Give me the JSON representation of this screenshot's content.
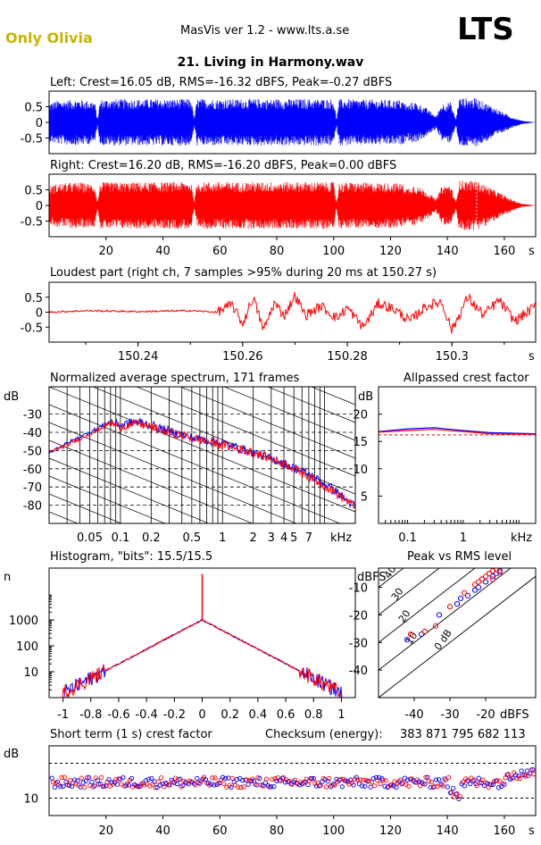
{
  "header": {
    "artist": "Only Olivia",
    "app_title": "MasVis ver 1.2 - www.lts.a.se",
    "logo": "LTS",
    "track_title": "21. Living in Harmony.wav",
    "artist_color": "#c8b400"
  },
  "colors": {
    "left": "#0000ff",
    "right": "#ff0000"
  },
  "chart_data": [
    {
      "id": "left",
      "type": "waveform",
      "title": "Left: Crest=16.05 dB, RMS=-16.32 dBFS, Peak=-0.27 dBFS",
      "ylim": [
        -1,
        1
      ],
      "y_ticks": [
        0.5,
        0,
        -0.5
      ],
      "y_tick_labels": [
        "0.5",
        "0",
        "-0.5"
      ],
      "xlim": [
        0,
        171
      ],
      "envelope": [
        [
          0,
          0.62
        ],
        [
          3,
          0.7
        ],
        [
          10,
          0.74
        ],
        [
          16,
          0.68
        ],
        [
          17,
          0.1
        ],
        [
          18,
          0.74
        ],
        [
          50,
          0.75
        ],
        [
          51,
          0.12
        ],
        [
          52,
          0.75
        ],
        [
          100,
          0.75
        ],
        [
          101,
          0.1
        ],
        [
          102,
          0.74
        ],
        [
          124,
          0.72
        ],
        [
          126,
          0.55
        ],
        [
          128,
          0.68
        ],
        [
          132,
          0.5
        ],
        [
          136,
          0.2
        ],
        [
          138,
          0.6
        ],
        [
          141,
          0.66
        ],
        [
          143,
          0.1
        ],
        [
          144,
          0.78
        ],
        [
          150,
          0.78
        ],
        [
          154,
          0.6
        ],
        [
          158,
          0.4
        ],
        [
          162,
          0.2
        ],
        [
          166,
          0.06
        ],
        [
          171,
          0.0
        ]
      ]
    },
    {
      "id": "right",
      "type": "waveform",
      "title": "Right: Crest=16.20 dB, RMS=-16.20 dBFS, Peak=0.00 dBFS",
      "ylim": [
        -1,
        1
      ],
      "y_ticks": [
        0.5,
        0,
        -0.5
      ],
      "y_tick_labels": [
        "0.5",
        "0",
        "-0.5"
      ],
      "xlim": [
        0,
        171
      ],
      "x_ticks": [
        20,
        40,
        60,
        80,
        100,
        120,
        140,
        160
      ],
      "x_tick_labels": [
        "20",
        "40",
        "60",
        "80",
        "100",
        "120",
        "140",
        "160"
      ],
      "x_unit": "s",
      "marker_x": 150.27,
      "envelope": [
        [
          0,
          0.62
        ],
        [
          3,
          0.7
        ],
        [
          10,
          0.74
        ],
        [
          16,
          0.68
        ],
        [
          17,
          0.1
        ],
        [
          18,
          0.74
        ],
        [
          50,
          0.75
        ],
        [
          51,
          0.12
        ],
        [
          52,
          0.75
        ],
        [
          100,
          0.75
        ],
        [
          101,
          0.1
        ],
        [
          102,
          0.74
        ],
        [
          124,
          0.72
        ],
        [
          126,
          0.55
        ],
        [
          128,
          0.68
        ],
        [
          132,
          0.5
        ],
        [
          136,
          0.2
        ],
        [
          138,
          0.62
        ],
        [
          141,
          0.68
        ],
        [
          143,
          0.1
        ],
        [
          144,
          0.8
        ],
        [
          150,
          0.8
        ],
        [
          154,
          0.62
        ],
        [
          158,
          0.42
        ],
        [
          162,
          0.22
        ],
        [
          166,
          0.06
        ],
        [
          171,
          0.0
        ]
      ]
    },
    {
      "id": "loudest",
      "type": "line",
      "title": "Loudest part (right ch, 7 samples >95% during 20 ms at 150.27 s)",
      "ylim": [
        -1,
        1
      ],
      "y_ticks": [
        0.5,
        0,
        -0.5
      ],
      "y_tick_labels": [
        "0.5",
        "0",
        "-0.5"
      ],
      "xlim": [
        150.223,
        150.316
      ],
      "x_ticks": [
        150.24,
        150.26,
        150.28,
        150.3
      ],
      "x_tick_labels": [
        "150.24",
        "150.26",
        "150.28",
        "150.3"
      ],
      "x_unit": "s",
      "trace": [
        [
          150.223,
          0.0
        ],
        [
          150.23,
          0.05
        ],
        [
          150.24,
          0.02
        ],
        [
          150.25,
          0.05
        ],
        [
          150.255,
          0.0
        ],
        [
          150.258,
          0.25
        ],
        [
          150.26,
          -0.4
        ],
        [
          150.262,
          0.5
        ],
        [
          150.264,
          -0.6
        ],
        [
          150.266,
          0.3
        ],
        [
          150.268,
          -0.1
        ],
        [
          150.27,
          0.55
        ],
        [
          150.272,
          -0.1
        ],
        [
          150.275,
          0.2
        ],
        [
          150.278,
          -0.2
        ],
        [
          150.28,
          0.15
        ],
        [
          150.283,
          -0.5
        ],
        [
          150.286,
          0.3
        ],
        [
          150.289,
          0.1
        ],
        [
          150.292,
          -0.3
        ],
        [
          150.295,
          0.2
        ],
        [
          150.298,
          0.35
        ],
        [
          150.3,
          -0.6
        ],
        [
          150.303,
          0.5
        ],
        [
          150.306,
          -0.1
        ],
        [
          150.309,
          0.4
        ],
        [
          150.312,
          -0.3
        ],
        [
          150.316,
          0.2
        ]
      ]
    },
    {
      "id": "spectrum",
      "type": "line",
      "title": "Normalized average spectrum, 171 frames",
      "y_unit": "dB",
      "ylim": [
        -90,
        -15
      ],
      "y_ticks": [
        -30,
        -40,
        -50,
        -60,
        -70,
        -80
      ],
      "y_tick_labels": [
        "-30",
        "-40",
        "-50",
        "-60",
        "-70",
        "-80"
      ],
      "x_scale": "log",
      "xlim": [
        0.02,
        20
      ],
      "x_ticks": [
        0.05,
        0.1,
        0.2,
        0.5,
        1,
        2,
        3,
        4,
        5,
        7
      ],
      "x_tick_labels": [
        "0.05",
        "0.1",
        "0.2",
        "0.5",
        "1",
        "2",
        "3",
        "4",
        "5",
        "7"
      ],
      "x_unit": "kHz",
      "series": [
        {
          "points": [
            [
              0.02,
              -51
            ],
            [
              0.03,
              -46
            ],
            [
              0.05,
              -40
            ],
            [
              0.08,
              -34
            ],
            [
              0.1,
              -36
            ],
            [
              0.15,
              -34
            ],
            [
              0.25,
              -38
            ],
            [
              0.5,
              -43
            ],
            [
              1,
              -46
            ],
            [
              2,
              -51
            ],
            [
              4,
              -57
            ],
            [
              7,
              -63
            ],
            [
              12,
              -71
            ],
            [
              20,
              -81
            ]
          ]
        },
        {
          "points": [
            [
              0.02,
              -51
            ],
            [
              0.03,
              -47
            ],
            [
              0.05,
              -41
            ],
            [
              0.08,
              -35
            ],
            [
              0.1,
              -37
            ],
            [
              0.15,
              -35
            ],
            [
              0.25,
              -39
            ],
            [
              0.5,
              -43
            ],
            [
              1,
              -47
            ],
            [
              2,
              -51
            ],
            [
              4,
              -57
            ],
            [
              7,
              -64
            ],
            [
              12,
              -72
            ],
            [
              20,
              -81
            ]
          ]
        }
      ]
    },
    {
      "id": "allpass",
      "type": "line",
      "title": "Allpassed crest factor",
      "y_unit": "dB",
      "ylim": [
        0,
        25
      ],
      "y_ticks": [
        20,
        15,
        10,
        5
      ],
      "y_tick_labels": [
        "20",
        "15",
        "10",
        "5"
      ],
      "x_scale": "log",
      "xlim": [
        0.03,
        20
      ],
      "x_ticks": [
        0.1,
        1
      ],
      "x_tick_labels": [
        "0.1",
        "1"
      ],
      "x_unit": "kHz",
      "ref_level": 16.2,
      "series": [
        {
          "points": [
            [
              0.03,
              16.8
            ],
            [
              0.1,
              17.3
            ],
            [
              0.3,
              17.5
            ],
            [
              1,
              17.0
            ],
            [
              3,
              16.6
            ],
            [
              8,
              16.5
            ],
            [
              20,
              16.4
            ]
          ]
        },
        {
          "points": [
            [
              0.03,
              16.7
            ],
            [
              0.1,
              17.0
            ],
            [
              0.3,
              17.2
            ],
            [
              1,
              16.8
            ],
            [
              3,
              16.4
            ],
            [
              8,
              16.3
            ],
            [
              20,
              16.3
            ]
          ]
        }
      ]
    },
    {
      "id": "histogram",
      "type": "line",
      "title": "Histogram, \"bits\": 15.5/15.5",
      "y_unit": "n",
      "y_scale": "log",
      "ylim": [
        1,
        100000
      ],
      "y_ticks": [
        1000,
        100,
        10
      ],
      "y_tick_labels": [
        "1000",
        "100",
        "10"
      ],
      "xlim": [
        -1.1,
        1.1
      ],
      "x_ticks": [
        -1,
        -0.8,
        -0.6,
        -0.4,
        -0.2,
        0,
        0.2,
        0.4,
        0.6,
        0.8,
        1
      ],
      "x_tick_labels": [
        "-1",
        "-0.8",
        "-0.6",
        "-0.4",
        "-0.2",
        "0",
        "0.2",
        "0.4",
        "0.6",
        "0.8",
        "1"
      ],
      "peak_value": 60000,
      "center_value": 1000,
      "edge_value": 1.5
    },
    {
      "id": "peak_vs_rms",
      "type": "scatter",
      "title": "Peak vs RMS level",
      "y_unit": "dBFS",
      "x_unit": "dBFS",
      "xlim": [
        -50,
        -6
      ],
      "ylim": [
        -50,
        -3
      ],
      "x_ticks": [
        -40,
        -30,
        -20
      ],
      "x_tick_labels": [
        "-40",
        "-30",
        "-20"
      ],
      "y_ticks": [
        -10,
        -20,
        -30,
        -40
      ],
      "y_tick_labels": [
        "-10",
        "-20",
        "-30",
        "-40"
      ],
      "diagonal_labels": [
        "40",
        "30",
        "20",
        "10",
        "0 dB"
      ],
      "series": [
        {
          "points": [
            [
              -42,
              -29
            ],
            [
              -38,
              -27
            ],
            [
              -33,
              -20
            ],
            [
              -28,
              -16
            ],
            [
              -25,
              -13
            ],
            [
              -22,
              -10
            ],
            [
              -20,
              -8
            ],
            [
              -18,
              -6
            ],
            [
              -17,
              -5
            ],
            [
              -16,
              -4
            ],
            [
              -21,
              -7
            ],
            [
              -19,
              -5
            ],
            [
              -23,
              -11
            ],
            [
              -27,
              -14
            ]
          ]
        },
        {
          "points": [
            [
              -41,
              -27
            ],
            [
              -37,
              -26
            ],
            [
              -34,
              -24
            ],
            [
              -30,
              -17
            ],
            [
              -26,
              -12
            ],
            [
              -23,
              -9
            ],
            [
              -21,
              -7
            ],
            [
              -19,
              -5
            ],
            [
              -18,
              -4
            ],
            [
              -17,
              -3.5
            ],
            [
              -16,
              -4.5
            ],
            [
              -20,
              -6
            ],
            [
              -22,
              -8
            ],
            [
              -18,
              -7
            ]
          ]
        }
      ]
    },
    {
      "id": "short_term",
      "type": "scatter",
      "title": "Short term (1 s) crest factor",
      "checksum_label": "Checksum (energy):",
      "checksum_value": "383 871 795 682 113",
      "y_unit": "dB",
      "ylim": [
        5,
        25
      ],
      "y_ticks": [
        10
      ],
      "y_tick_labels": [
        "10"
      ],
      "ref_levels": [
        10,
        20
      ],
      "xlim": [
        0,
        171
      ],
      "x_ticks": [
        20,
        40,
        60,
        80,
        100,
        120,
        140,
        160
      ],
      "x_tick_labels": [
        "20",
        "40",
        "60",
        "80",
        "100",
        "120",
        "140",
        "160"
      ],
      "x_unit": "s",
      "base_level": 14.5,
      "spread": 1.5
    }
  ]
}
